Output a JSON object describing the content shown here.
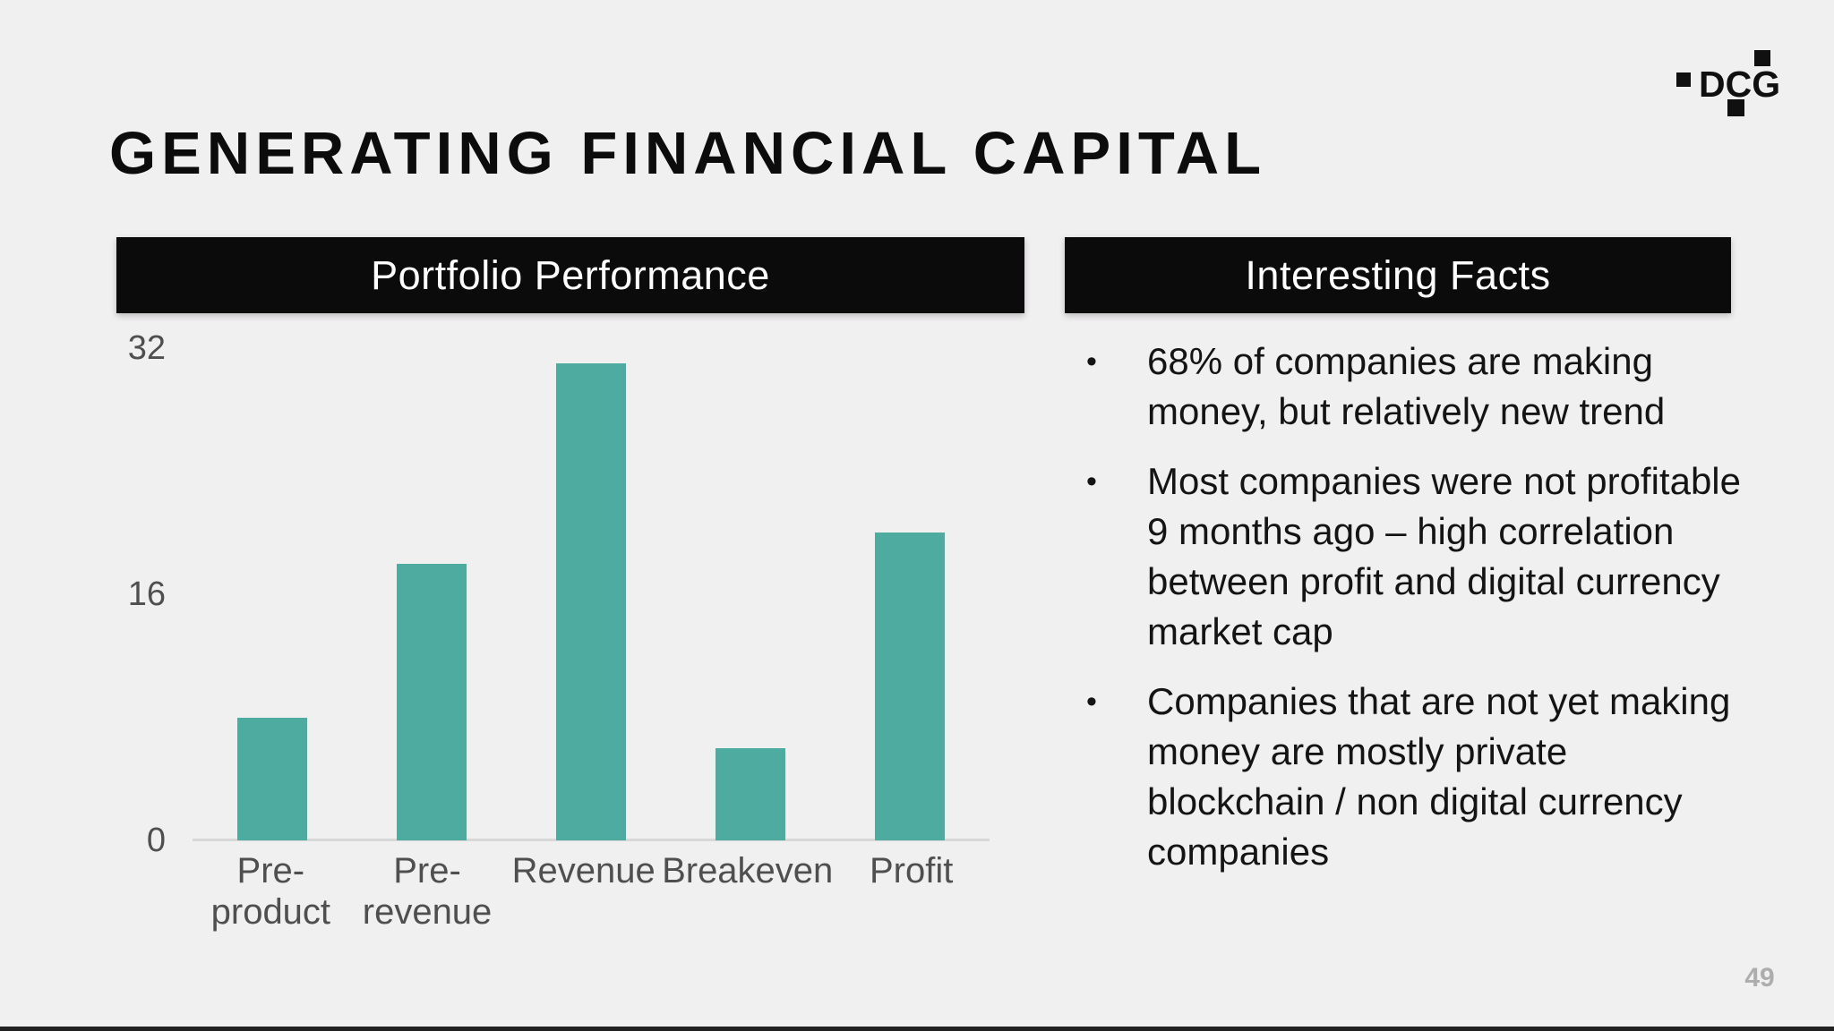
{
  "slide": {
    "title": "GENERATING FINANCIAL CAPITAL",
    "page_number": "49"
  },
  "logo": {
    "text": "DCG"
  },
  "portfolio": {
    "header": "Portfolio Performance"
  },
  "facts": {
    "header": "Interesting Facts",
    "bullet_glyph": "•",
    "bullets": [
      "68% of companies are making money, but relatively new trend",
      "Most companies were not profitable 9 months ago – high correlation between profit and digital currency market cap",
      "Companies that are not yet making money are mostly private blockchain / non digital currency companies"
    ]
  },
  "chart_data": {
    "type": "bar",
    "title": "Portfolio Performance",
    "categories": [
      "Pre-product",
      "Pre-revenue",
      "Revenue",
      "Breakeven",
      "Profit"
    ],
    "values": [
      8,
      18,
      31,
      6,
      20
    ],
    "xlabel": "",
    "ylabel": "",
    "ylim": [
      0,
      32
    ],
    "yticks": [
      0,
      16,
      32
    ],
    "grid": false,
    "legend": false,
    "bar_color": "#4dac9f"
  },
  "colors": {
    "background": "#f1f0f1",
    "header_box": "#0b0b0b",
    "bar_teal": "#4dac9f",
    "axis_line": "#d8d8d9",
    "axis_label": "#4f4f4f",
    "body_text": "#141414",
    "page_number": "#adadad"
  }
}
